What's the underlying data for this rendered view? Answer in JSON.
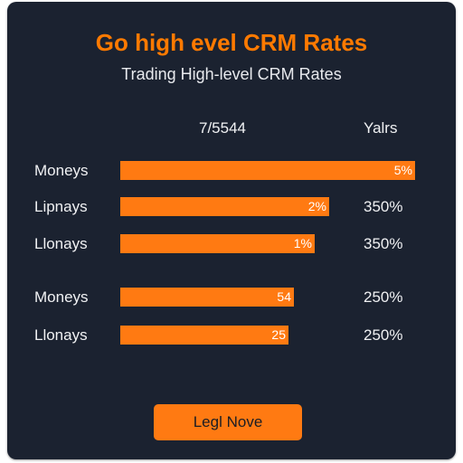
{
  "header": {
    "title": "Go high evel CRM Rates",
    "subtitle": "Trading High-level CRM Rates"
  },
  "columns": {
    "left": "7/5544",
    "right": "Yalrs"
  },
  "rows": [
    {
      "label": "Moneys",
      "bar_value": "5%",
      "bar_fraction": 1.0,
      "right": ""
    },
    {
      "label": "Lipnays",
      "bar_value": "2%",
      "bar_fraction": 0.71,
      "right": "350%"
    },
    {
      "label": "Llonays",
      "bar_value": "1%",
      "bar_fraction": 0.66,
      "right": "350%"
    },
    {
      "label": "Moneys",
      "bar_value": "54",
      "bar_fraction": 0.59,
      "right": "250%"
    },
    {
      "label": "Llonays",
      "bar_value": "25",
      "bar_fraction": 0.57,
      "right": "250%"
    }
  ],
  "cta": {
    "label": "Legl Nove"
  },
  "colors": {
    "background": "#1b2230",
    "accent": "#ff7a12",
    "title": "#ff7a00"
  }
}
